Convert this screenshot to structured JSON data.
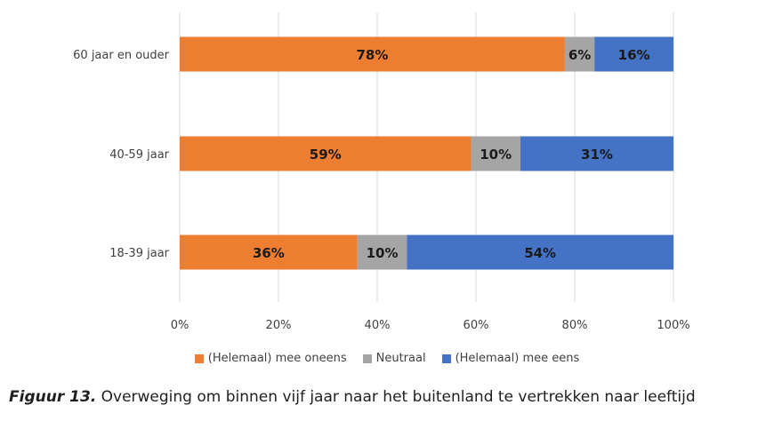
{
  "chart_data": {
    "type": "bar",
    "orientation": "horizontal",
    "stacked": "percent",
    "categories": [
      "60 jaar en ouder",
      "40-59 jaar",
      "18-39 jaar"
    ],
    "series": [
      {
        "name": "(Helemaal) mee oneens",
        "color": "#ED7D31",
        "values": [
          78,
          59,
          36
        ]
      },
      {
        "name": "Neutraal",
        "color": "#A5A5A5",
        "values": [
          6,
          10,
          10
        ]
      },
      {
        "name": "(Helemaal) mee eens",
        "color": "#4472C4",
        "values": [
          16,
          31,
          54
        ]
      }
    ],
    "xlim": [
      0,
      100
    ],
    "xticks": [
      "0%",
      "20%",
      "40%",
      "60%",
      "80%",
      "100%"
    ],
    "grid": "vertical",
    "legend_position": "bottom"
  },
  "caption": {
    "figure_label": "Figuur 13.",
    "text": " Overweging om binnen vijf jaar naar het buitenland te vertrekken naar leeftijd"
  }
}
